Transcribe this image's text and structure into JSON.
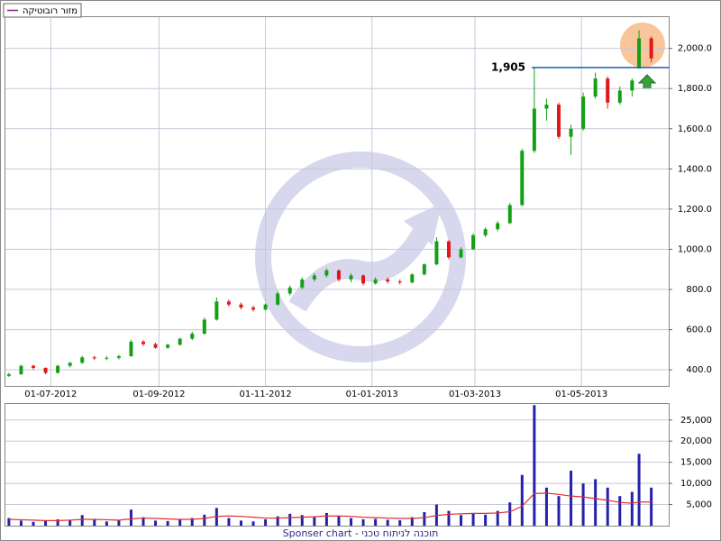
{
  "chart_data": [
    {
      "type": "candlestick",
      "legend_label": "מזור רובוטיקה",
      "x": [
        "07-06-2012",
        "14-06-2012",
        "21-06-2012",
        "28-06-2012",
        "05-07-2012",
        "12-07-2012",
        "19-07-2012",
        "26-07-2012",
        "02-08-2012",
        "09-08-2012",
        "16-08-2012",
        "23-08-2012",
        "30-08-2012",
        "06-09-2012",
        "13-09-2012",
        "20-09-2012",
        "27-09-2012",
        "04-10-2012",
        "11-10-2012",
        "18-10-2012",
        "25-10-2012",
        "01-11-2012",
        "08-11-2012",
        "15-11-2012",
        "22-11-2012",
        "29-11-2012",
        "06-12-2012",
        "13-12-2012",
        "20-12-2012",
        "27-12-2012",
        "03-01-2013",
        "10-01-2013",
        "17-01-2013",
        "24-01-2013",
        "31-01-2013",
        "07-02-2013",
        "14-02-2013",
        "21-02-2013",
        "28-02-2013",
        "07-03-2013",
        "14-03-2013",
        "21-03-2013",
        "28-03-2013",
        "04-04-2013",
        "11-04-2013",
        "18-04-2013",
        "25-04-2013",
        "02-05-2013",
        "09-05-2013",
        "16-05-2013",
        "23-05-2013",
        "30-05-2013",
        "03-06-2013",
        "10-06-2013"
      ],
      "open": [
        370,
        378,
        420,
        410,
        385,
        420,
        435,
        462,
        458,
        460,
        468,
        540,
        528,
        510,
        525,
        555,
        580,
        650,
        740,
        725,
        710,
        700,
        725,
        780,
        810,
        850,
        870,
        895,
        850,
        870,
        830,
        850,
        840,
        835,
        875,
        925,
        1040,
        960,
        1000,
        1070,
        1100,
        1130,
        1220,
        1490,
        1700,
        1720,
        1560,
        1600,
        1760,
        1850,
        1730,
        1790,
        1900,
        2050
      ],
      "high": [
        385,
        425,
        425,
        412,
        425,
        440,
        470,
        470,
        468,
        475,
        550,
        548,
        535,
        530,
        560,
        590,
        660,
        760,
        750,
        735,
        720,
        730,
        790,
        820,
        860,
        880,
        905,
        900,
        880,
        875,
        860,
        860,
        850,
        880,
        930,
        1060,
        1045,
        1010,
        1080,
        1110,
        1140,
        1230,
        1500,
        1905,
        1750,
        1730,
        1620,
        1780,
        1880,
        1860,
        1810,
        1850,
        2090,
        2060
      ],
      "low": [
        365,
        375,
        400,
        378,
        382,
        412,
        430,
        450,
        448,
        452,
        465,
        520,
        505,
        505,
        520,
        548,
        575,
        645,
        715,
        700,
        690,
        695,
        720,
        770,
        800,
        840,
        860,
        840,
        835,
        820,
        825,
        830,
        825,
        830,
        870,
        920,
        950,
        955,
        995,
        1060,
        1090,
        1125,
        1215,
        1480,
        1640,
        1550,
        1470,
        1590,
        1750,
        1700,
        1720,
        1760,
        1900,
        1930
      ],
      "close": [
        378,
        420,
        410,
        385,
        420,
        435,
        462,
        458,
        460,
        468,
        540,
        528,
        510,
        525,
        555,
        580,
        650,
        740,
        725,
        710,
        700,
        725,
        780,
        810,
        850,
        870,
        895,
        850,
        870,
        830,
        850,
        840,
        835,
        875,
        925,
        1040,
        960,
        1000,
        1070,
        1100,
        1130,
        1220,
        1490,
        1700,
        1720,
        1560,
        1600,
        1760,
        1850,
        1730,
        1790,
        1840,
        2050,
        1950
      ],
      "up_color": "#14a014",
      "down_color": "#e01818",
      "xlim": [
        "05-06-2012",
        "20-06-2013"
      ],
      "xticks": [
        "01-07-2012",
        "01-09-2012",
        "01-11-2012",
        "01-01-2013",
        "01-03-2013",
        "01-05-2013"
      ],
      "ylim": [
        320,
        2160
      ],
      "yticks": [
        {
          "value": 400,
          "label": "400.0"
        },
        {
          "value": 600,
          "label": "600.0"
        },
        {
          "value": 800,
          "label": "800.0"
        },
        {
          "value": 1000,
          "label": "1,000.0"
        },
        {
          "value": 1200,
          "label": "1,200.0"
        },
        {
          "value": 1400,
          "label": "1,400.0"
        },
        {
          "value": 1600,
          "label": "1,600.0"
        },
        {
          "value": 1800,
          "label": "1,800.0"
        },
        {
          "value": 2000,
          "label": "2,000.0"
        }
      ],
      "grid": true,
      "annotation": {
        "text": "1,905",
        "value": 1905,
        "color": "#1a5fb4"
      }
    },
    {
      "type": "bar",
      "x": [
        "07-06-2012",
        "14-06-2012",
        "21-06-2012",
        "28-06-2012",
        "05-07-2012",
        "12-07-2012",
        "19-07-2012",
        "26-07-2012",
        "02-08-2012",
        "09-08-2012",
        "16-08-2012",
        "23-08-2012",
        "30-08-2012",
        "06-09-2012",
        "13-09-2012",
        "20-09-2012",
        "27-09-2012",
        "04-10-2012",
        "11-10-2012",
        "18-10-2012",
        "25-10-2012",
        "01-11-2012",
        "08-11-2012",
        "15-11-2012",
        "22-11-2012",
        "29-11-2012",
        "06-12-2012",
        "13-12-2012",
        "20-12-2012",
        "27-12-2012",
        "03-01-2013",
        "10-01-2013",
        "17-01-2013",
        "24-01-2013",
        "31-01-2013",
        "07-02-2013",
        "14-02-2013",
        "21-02-2013",
        "28-02-2013",
        "07-03-2013",
        "14-03-2013",
        "21-03-2013",
        "28-03-2013",
        "04-04-2013",
        "11-04-2013",
        "18-04-2013",
        "25-04-2013",
        "02-05-2013",
        "09-05-2013",
        "16-05-2013",
        "23-05-2013",
        "30-05-2013",
        "03-06-2013",
        "10-06-2013"
      ],
      "series": [
        {
          "color": "#2222aa",
          "values": [
            1800,
            1200,
            900,
            1100,
            1500,
            1300,
            2500,
            1400,
            1000,
            1200,
            3800,
            2000,
            1200,
            1100,
            1500,
            1800,
            2600,
            4200,
            1800,
            1200,
            1000,
            1500,
            2200,
            2800,
            2500,
            2000,
            3000,
            2200,
            1800,
            1500,
            1600,
            1400,
            1300,
            2000,
            3200,
            5000,
            3500,
            2500,
            3000,
            2600,
            3500,
            5500,
            12000,
            28500,
            9000,
            7000,
            13000,
            10000,
            11000,
            9000,
            7000,
            8000,
            17000,
            9000
          ]
        },
        {
          "color": "#e03030",
          "line": true,
          "values": [
            1500,
            1400,
            1300,
            1200,
            1200,
            1300,
            1500,
            1500,
            1400,
            1300,
            1600,
            1800,
            1700,
            1600,
            1500,
            1500,
            1700,
            2200,
            2300,
            2200,
            2000,
            1800,
            1800,
            1900,
            2000,
            2100,
            2300,
            2300,
            2200,
            2000,
            1900,
            1800,
            1700,
            1700,
            1900,
            2400,
            2700,
            2800,
            2900,
            2900,
            3000,
            3300,
            4600,
            7600,
            7700,
            7400,
            7000,
            6800,
            6400,
            6000,
            5500,
            5300,
            5600,
            5600
          ]
        }
      ],
      "xlim": [
        "05-06-2012",
        "20-06-2013"
      ],
      "ylim": [
        0,
        29000
      ],
      "yticks": [
        {
          "value": 5000,
          "label": "5,000"
        },
        {
          "value": 10000,
          "label": "10,000"
        },
        {
          "value": 15000,
          "label": "15,000"
        },
        {
          "value": 20000,
          "label": "20,000"
        },
        {
          "value": 25000,
          "label": "25,000"
        }
      ],
      "grid": true
    }
  ],
  "footer": "Sponser chart - תוכנה לניתוח טכני"
}
